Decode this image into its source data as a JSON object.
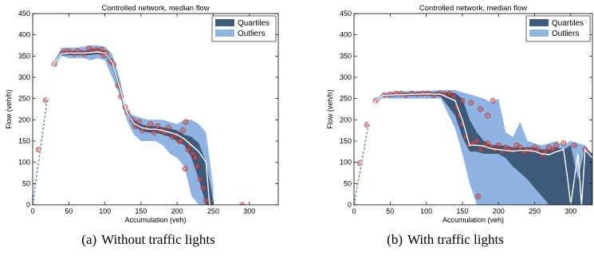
{
  "chart_data": [
    {
      "type": "area",
      "title": "Controlled network, median flow",
      "xlabel": "Accumulation (veh)",
      "ylabel": "Flow (veh/h)",
      "xlim": [
        0,
        340
      ],
      "ylim": [
        0,
        450
      ],
      "xticks": [
        0,
        50,
        100,
        150,
        200,
        250,
        300
      ],
      "yticks": [
        0,
        50,
        100,
        150,
        200,
        250,
        300,
        350,
        400,
        450
      ],
      "legend": {
        "position": "top-right",
        "entries": [
          "Quartiles",
          "Outliers"
        ]
      },
      "colors": {
        "quartiles": "#3d5a7a",
        "outliers": "#8fb4e2",
        "median": "#ffffff",
        "points": "#d9534f",
        "ramp": "#6e8eb8"
      },
      "series": [
        {
          "name": "Outliers",
          "x": [
            0,
            10,
            20,
            30,
            40,
            50,
            60,
            70,
            80,
            90,
            100,
            110,
            120,
            130,
            140,
            150,
            160,
            170,
            180,
            190,
            200,
            210,
            220,
            230,
            240,
            250
          ],
          "low": [
            0,
            125,
            245,
            325,
            350,
            345,
            345,
            345,
            340,
            345,
            340,
            300,
            260,
            200,
            165,
            150,
            150,
            150,
            140,
            120,
            110,
            90,
            20,
            0,
            0,
            0
          ],
          "high": [
            0,
            135,
            250,
            340,
            370,
            370,
            370,
            372,
            375,
            375,
            372,
            355,
            300,
            220,
            210,
            205,
            200,
            200,
            200,
            195,
            190,
            200,
            200,
            190,
            170,
            40
          ]
        },
        {
          "name": "Quartiles",
          "x": [
            0,
            10,
            20,
            30,
            40,
            50,
            60,
            70,
            80,
            90,
            100,
            110,
            120,
            130,
            140,
            150,
            160,
            170,
            180,
            190,
            200,
            210,
            220,
            230,
            240,
            250
          ],
          "low": [
            0,
            128,
            246,
            330,
            352,
            352,
            352,
            352,
            352,
            355,
            352,
            328,
            270,
            215,
            185,
            175,
            170,
            170,
            165,
            160,
            150,
            140,
            110,
            60,
            0,
            0
          ],
          "high": [
            0,
            132,
            249,
            335,
            360,
            362,
            362,
            362,
            365,
            368,
            362,
            340,
            290,
            222,
            200,
            190,
            185,
            185,
            182,
            180,
            175,
            165,
            160,
            145,
            100,
            10
          ]
        },
        {
          "name": "Median",
          "x": [
            0,
            10,
            20,
            30,
            40,
            50,
            60,
            70,
            80,
            90,
            100,
            110,
            120,
            130,
            140,
            150,
            160,
            170,
            180,
            190,
            200,
            210,
            220,
            230,
            240,
            245
          ],
          "y": [
            0,
            130,
            247,
            333,
            355,
            357,
            357,
            357,
            358,
            360,
            357,
            335,
            280,
            218,
            192,
            182,
            178,
            178,
            175,
            170,
            165,
            155,
            140,
            125,
            100,
            0
          ]
        },
        {
          "name": "Samples",
          "x": [
            8,
            18,
            30,
            42,
            47,
            52,
            58,
            62,
            68,
            72,
            78,
            82,
            88,
            92,
            95,
            98,
            102,
            108,
            112,
            118,
            122,
            128,
            131,
            138,
            142,
            147,
            152,
            158,
            163,
            168,
            173,
            178,
            182,
            188,
            193,
            198,
            203,
            208,
            212,
            218,
            222,
            228,
            232,
            236,
            240,
            211,
            215,
            225,
            205,
            290
          ],
          "y": [
            130,
            246,
            331,
            358,
            362,
            360,
            356,
            362,
            358,
            355,
            368,
            362,
            364,
            360,
            366,
            352,
            358,
            338,
            330,
            280,
            255,
            230,
            218,
            200,
            185,
            195,
            175,
            180,
            190,
            170,
            185,
            175,
            170,
            182,
            160,
            165,
            150,
            175,
            195,
            140,
            120,
            90,
            60,
            40,
            10,
            85,
            130,
            110,
            150,
            0
          ]
        }
      ]
    },
    {
      "type": "area",
      "title": "Controlled network, median flow",
      "xlabel": "Accumulation (veh)",
      "ylabel": "Flow (veh/h)",
      "xlim": [
        0,
        330
      ],
      "ylim": [
        0,
        450
      ],
      "xticks": [
        0,
        50,
        100,
        150,
        200,
        250,
        300
      ],
      "yticks": [
        0,
        50,
        100,
        150,
        200,
        250,
        300,
        350,
        400,
        450
      ],
      "legend": {
        "position": "top-right",
        "entries": [
          "Quartiles",
          "Outliers"
        ]
      },
      "colors": {
        "quartiles": "#3d5a7a",
        "outliers": "#8fb4e2",
        "median": "#ffffff",
        "points": "#d9534f",
        "ramp": "#6e8eb8"
      },
      "series": [
        {
          "name": "Outliers",
          "x": [
            0,
            10,
            20,
            30,
            40,
            50,
            60,
            80,
            100,
            120,
            140,
            150,
            160,
            170,
            180,
            190,
            200,
            210,
            220,
            230,
            240,
            250,
            260,
            270,
            280,
            290,
            300,
            310,
            320,
            330
          ],
          "low": [
            0,
            95,
            185,
            240,
            252,
            250,
            250,
            250,
            250,
            250,
            180,
            120,
            50,
            0,
            0,
            0,
            0,
            0,
            0,
            0,
            0,
            0,
            0,
            0,
            0,
            0,
            0,
            0,
            0,
            0
          ],
          "high": [
            0,
            102,
            190,
            250,
            262,
            265,
            267,
            268,
            268,
            270,
            270,
            265,
            260,
            255,
            250,
            240,
            250,
            170,
            160,
            195,
            150,
            145,
            140,
            145,
            150,
            140,
            150,
            145,
            140,
            110
          ]
        },
        {
          "name": "Quartiles",
          "x": [
            0,
            10,
            20,
            30,
            40,
            50,
            60,
            80,
            100,
            120,
            140,
            150,
            160,
            170,
            180,
            190,
            200,
            210,
            220,
            230,
            240,
            250,
            260,
            270,
            280,
            290,
            300,
            310,
            320,
            330
          ],
          "low": [
            0,
            97,
            187,
            243,
            255,
            255,
            256,
            257,
            257,
            255,
            210,
            160,
            125,
            125,
            120,
            120,
            120,
            110,
            90,
            75,
            60,
            40,
            20,
            0,
            0,
            0,
            0,
            0,
            0,
            0
          ],
          "high": [
            0,
            100,
            189,
            247,
            258,
            260,
            262,
            264,
            265,
            265,
            263,
            250,
            200,
            170,
            150,
            140,
            140,
            138,
            135,
            135,
            135,
            135,
            130,
            130,
            135,
            130,
            140,
            60,
            135,
            120
          ]
        },
        {
          "name": "Median",
          "x": [
            0,
            10,
            20,
            30,
            40,
            50,
            60,
            80,
            100,
            120,
            140,
            150,
            160,
            170,
            180,
            190,
            200,
            210,
            220,
            230,
            240,
            250,
            260,
            270,
            280,
            290,
            295,
            300,
            310,
            315,
            320,
            330
          ],
          "y": [
            0,
            98,
            188,
            245,
            257,
            258,
            259,
            260,
            261,
            260,
            245,
            200,
            140,
            140,
            138,
            132,
            130,
            128,
            126,
            128,
            128,
            126,
            120,
            118,
            125,
            130,
            70,
            0,
            120,
            0,
            130,
            110
          ]
        },
        {
          "name": "Samples",
          "x": [
            8,
            18,
            30,
            42,
            50,
            58,
            65,
            72,
            80,
            88,
            95,
            102,
            110,
            118,
            125,
            132,
            138,
            142,
            146,
            150,
            155,
            160,
            165,
            170,
            175,
            180,
            185,
            190,
            195,
            200,
            205,
            210,
            215,
            220,
            225,
            230,
            235,
            240,
            245,
            250,
            255,
            260,
            265,
            270,
            275,
            280,
            290,
            305,
            320,
            150,
            162,
            175,
            185,
            192,
            172
          ],
          "y": [
            98,
            188,
            245,
            258,
            260,
            262,
            262,
            258,
            262,
            260,
            262,
            262,
            258,
            262,
            260,
            262,
            255,
            230,
            210,
            190,
            160,
            140,
            145,
            150,
            130,
            140,
            145,
            135,
            130,
            140,
            125,
            135,
            130,
            128,
            140,
            135,
            125,
            130,
            128,
            135,
            130,
            118,
            125,
            135,
            130,
            140,
            145,
            140,
            130,
            245,
            240,
            225,
            210,
            245,
            20
          ]
        }
      ]
    }
  ],
  "captions": [
    {
      "tag": "(a)",
      "text": "Without traffic lights"
    },
    {
      "tag": "(b)",
      "text": "With traffic lights"
    }
  ]
}
